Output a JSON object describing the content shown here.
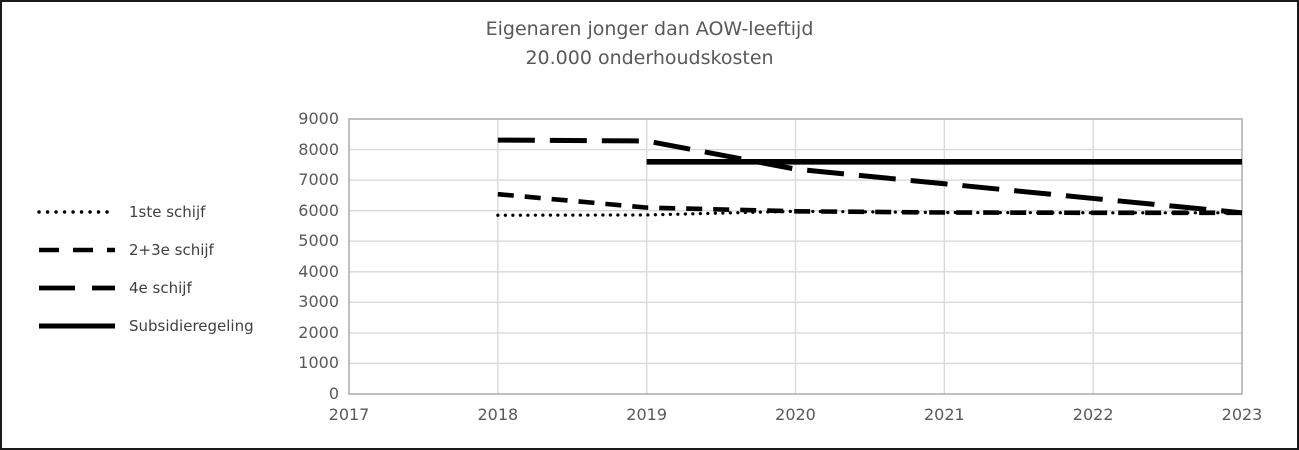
{
  "window": {
    "background_color": "#ffffff",
    "border_color": "#1a1a1a"
  },
  "chart": {
    "title_line1": "Eigenaren jonger dan AOW-leeftijd",
    "title_line2": "20.000 onderhoudskosten",
    "text_color": "#595959",
    "legend_text_color": "#404040",
    "series_color": "#000000",
    "gridline_color": "#d9d9d9",
    "axis_color": "#a6a6a6"
  },
  "chart_data": {
    "type": "line",
    "title": "Eigenaren jonger dan AOW-leeftijd 20.000 onderhoudskosten",
    "xlabel": "",
    "ylabel": "",
    "grid": true,
    "legend_position": "left",
    "categories": [
      2017,
      2018,
      2019,
      2020,
      2021,
      2022,
      2023
    ],
    "xlim": [
      2017,
      2023
    ],
    "ylim": [
      0,
      9000
    ],
    "y_ticks": [
      0,
      1000,
      2000,
      3000,
      4000,
      5000,
      6000,
      7000,
      8000,
      9000
    ],
    "series": [
      {
        "name": "1ste schijf",
        "line_style": "dotted",
        "values": [
          null,
          5850,
          5860,
          5980,
          5940,
          5930,
          5930
        ]
      },
      {
        "name": "2+3e schijf",
        "line_style": "dashed",
        "values": [
          null,
          6540,
          6100,
          5980,
          5940,
          5930,
          5930
        ]
      },
      {
        "name": "4e schijf",
        "line_style": "long-dash",
        "values": [
          null,
          8310,
          8280,
          7360,
          6880,
          6400,
          5930
        ]
      },
      {
        "name": "Subsidieregeling",
        "line_style": "solid",
        "values": [
          null,
          null,
          7600,
          7600,
          7600,
          7600,
          7600
        ]
      }
    ]
  }
}
